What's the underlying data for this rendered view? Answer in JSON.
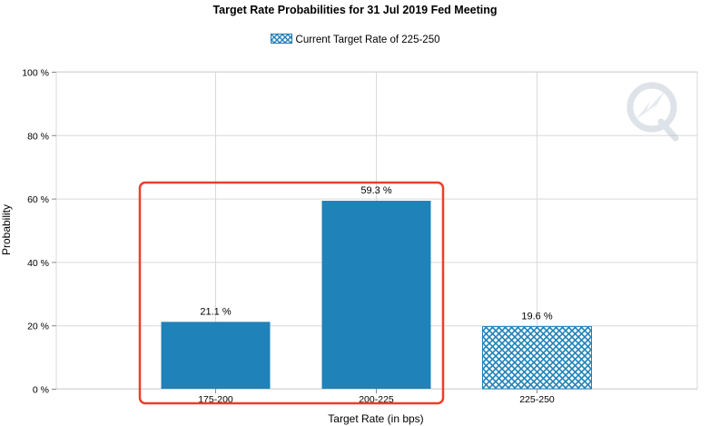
{
  "chart_data": {
    "type": "bar",
    "title": "Target Rate Probabilities for 31 Jul 2019 Fed Meeting",
    "legend": "Current Target Rate of 225-250",
    "xlabel": "Target Rate (in bps)",
    "ylabel": "Probability",
    "categories": [
      "175-200",
      "200-225",
      "225-250"
    ],
    "values": [
      21.1,
      59.3,
      19.6
    ],
    "value_labels": [
      "21.1 %",
      "59.3 %",
      "19.6 %"
    ],
    "highlight_current": "225-250",
    "ylim": [
      0,
      100
    ],
    "yticks": [
      0,
      20,
      40,
      60,
      80,
      100
    ],
    "ytick_labels": [
      "0 %",
      "20 %",
      "40 %",
      "60 %",
      "80 %",
      "100 %"
    ],
    "grid": true,
    "legend_position": "top-center",
    "annotation": "red box around 175-200 and 200-225"
  },
  "colors": {
    "bar": "#1f82b8",
    "grid": "#d9d9d9",
    "annotation": "#e8402b"
  }
}
